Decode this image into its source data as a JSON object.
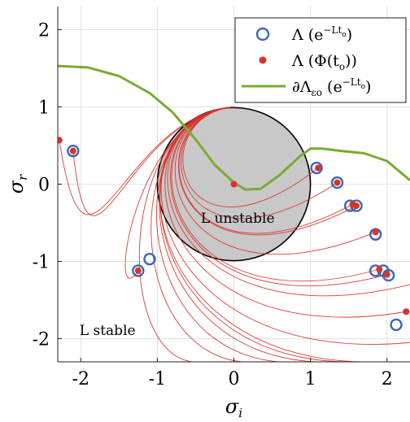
{
  "chart_data": {
    "type": "scatter",
    "xlabel": "σ_i",
    "ylabel": "σ_r",
    "xlim": [
      -2.3,
      2.3
    ],
    "ylim": [
      -2.3,
      2.3
    ],
    "x_ticks": [
      -2,
      -1,
      0,
      1,
      2
    ],
    "x_tick_labels": [
      "-2",
      "-1",
      "0",
      "1",
      "2"
    ],
    "y_ticks": [
      -2,
      -1,
      0,
      1,
      2
    ],
    "y_tick_labels": [
      "-2",
      "-1",
      "0",
      "1",
      "2"
    ],
    "grid": true,
    "legend_position": "top-right",
    "legend": {
      "entries": [
        {
          "series": "open",
          "label": "Λ (e",
          "sup": "−Lt",
          "sub": "o",
          "tail": ")"
        },
        {
          "series": "filled",
          "label": "Λ (Φ(t",
          "sub": "o",
          "tail": "))"
        },
        {
          "series": "boundary",
          "label": "∂Λ",
          "sub": "εo",
          "mid": " (e",
          "sup": "−Lt",
          "sub2": "o",
          "tail": ")"
        }
      ]
    },
    "annotations": [
      {
        "text": "L unstable",
        "x": 0.05,
        "y": -0.5
      },
      {
        "text": "L stable",
        "x": -1.65,
        "y": -1.95
      }
    ],
    "unit_disk": {
      "center": [
        0,
        0
      ],
      "radius": 1,
      "color": "#c8c8c8"
    },
    "series": [
      {
        "id": "open",
        "style": "open-circle",
        "color": "#3c68b0",
        "points": [
          [
            -2.1,
            0.43
          ],
          [
            -1.25,
            -1.12
          ],
          [
            -1.1,
            -0.97
          ],
          [
            1.08,
            0.21
          ],
          [
            1.35,
            0.02
          ],
          [
            1.52,
            -0.28
          ],
          [
            1.6,
            -0.28
          ],
          [
            1.85,
            -0.65
          ],
          [
            1.85,
            -1.12
          ],
          [
            1.95,
            -1.12
          ],
          [
            2.02,
            -1.18
          ],
          [
            2.12,
            -1.82
          ]
        ]
      },
      {
        "id": "filled",
        "style": "dot",
        "color": "#d9332a",
        "points": [
          [
            -2.28,
            0.57
          ],
          [
            -2.1,
            0.43
          ],
          [
            -1.25,
            -1.12
          ],
          [
            0.0,
            0.0
          ],
          [
            1.1,
            0.21
          ],
          [
            1.35,
            0.02
          ],
          [
            1.55,
            -0.26
          ],
          [
            1.6,
            -0.28
          ],
          [
            1.85,
            -0.62
          ],
          [
            1.9,
            -1.1
          ],
          [
            2.0,
            -1.17
          ],
          [
            2.25,
            -1.65
          ]
        ]
      },
      {
        "id": "boundary",
        "style": "line",
        "color": "#77ac30",
        "points": [
          [
            -2.3,
            1.53
          ],
          [
            -1.9,
            1.51
          ],
          [
            -1.5,
            1.4
          ],
          [
            -1.1,
            1.18
          ],
          [
            -0.8,
            0.93
          ],
          [
            -0.5,
            0.58
          ],
          [
            -0.25,
            0.25
          ],
          [
            0.0,
            0.02
          ],
          [
            0.15,
            -0.07
          ],
          [
            0.35,
            -0.06
          ],
          [
            0.6,
            0.12
          ],
          [
            0.85,
            0.35
          ],
          [
            1.0,
            0.46
          ],
          [
            1.15,
            0.46
          ],
          [
            1.4,
            0.43
          ],
          [
            1.7,
            0.4
          ],
          [
            2.0,
            0.3
          ],
          [
            2.3,
            0.05
          ]
        ]
      }
    ],
    "trajectories": {
      "color": "#d9332a",
      "start": [
        0,
        1
      ],
      "ends": [
        [
          -2.28,
          0.57
        ],
        [
          -2.1,
          0.43
        ],
        [
          -1.25,
          -1.12
        ],
        [
          1.1,
          0.21
        ],
        [
          1.35,
          0.02
        ],
        [
          1.55,
          -0.26
        ],
        [
          1.6,
          -0.28
        ],
        [
          1.85,
          -0.62
        ],
        [
          1.9,
          -1.1
        ],
        [
          2.0,
          -1.17
        ],
        [
          2.25,
          -1.65
        ],
        [
          -0.55,
          -2.3
        ],
        [
          0.1,
          -2.3
        ],
        [
          0.6,
          -2.3
        ],
        [
          1.1,
          -2.3
        ],
        [
          1.5,
          -2.3
        ],
        [
          1.85,
          -2.3
        ],
        [
          2.3,
          -2.05
        ],
        [
          2.3,
          -1.3
        ]
      ]
    }
  }
}
